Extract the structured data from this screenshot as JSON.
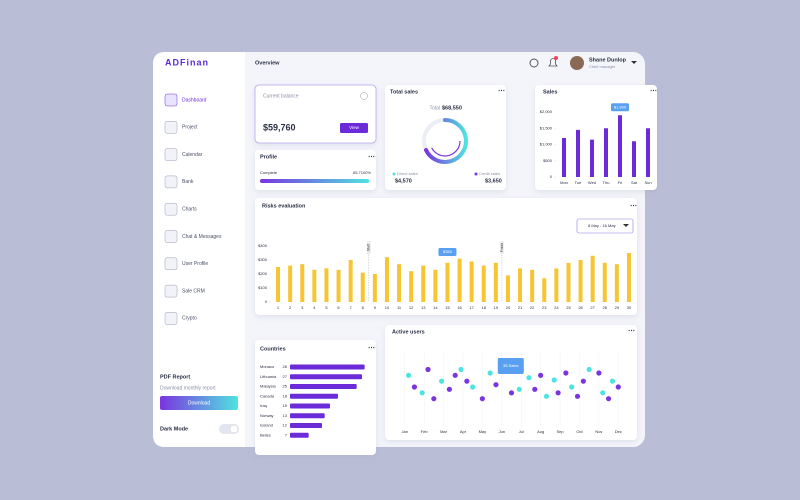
{
  "logo": "ADFinan",
  "header": {
    "title": "Overview",
    "user_name": "Shane Dunlop",
    "user_role": "Chief manager"
  },
  "nav": [
    "Dashboard",
    "Project",
    "Calendar",
    "Bank",
    "Charts",
    "Chat & Messages",
    "User Profile",
    "Sale CRM",
    "Crypto"
  ],
  "sidebar": {
    "pdf_title": "PDF Report",
    "pdf_text": "Download monthly report",
    "download": "Download",
    "dark_mode": "Dark Mode"
  },
  "balance": {
    "title": "Current balance",
    "amount": "$59,760",
    "button": "View"
  },
  "profile": {
    "title": "Profile",
    "label": "Complete",
    "value": "65.7100%"
  },
  "total_sales": {
    "title": "Total sales",
    "total_label": "Total",
    "total": "$68,550",
    "direct_label": "Direct sales",
    "direct": "$4,570",
    "credit_label": "Credit sales",
    "credit": "$3,650"
  },
  "chart_data": [
    {
      "type": "bar",
      "title": "Sales",
      "categories": [
        "Mon",
        "Tue",
        "Wed",
        "Thu",
        "Fri",
        "Sat",
        "Sun"
      ],
      "values": [
        1200,
        1450,
        1150,
        1500,
        1900,
        1100,
        1500
      ],
      "color": "#6b2bd9",
      "ylim": [
        0,
        2000
      ],
      "yticks": [
        0,
        {
          "value": 500,
          "label": "$500"
        },
        {
          "value": 1000,
          "label": "$1,000"
        },
        {
          "value": 1500,
          "label": "$1,500"
        },
        {
          "value": 2000,
          "label": "$2,000"
        }
      ],
      "tooltip": "$1,900"
    },
    {
      "type": "bar",
      "title": "Risks evaluation",
      "date_range": "8 May - 16 May",
      "categories": [
        "1",
        "2",
        "3",
        "4",
        "5",
        "6",
        "7",
        "8",
        "9",
        "10",
        "11",
        "12",
        "13",
        "14",
        "15",
        "16",
        "17",
        "18",
        "19",
        "20",
        "21",
        "22",
        "23",
        "24",
        "25",
        "26",
        "27",
        "28",
        "29",
        "30"
      ],
      "values": [
        250,
        260,
        270,
        230,
        240,
        230,
        300,
        210,
        200,
        320,
        270,
        220,
        260,
        230,
        280,
        310,
        290,
        260,
        280,
        190,
        240,
        230,
        170,
        240,
        280,
        300,
        330,
        280,
        270,
        350
      ],
      "color": "#f6c531",
      "ylim": [
        0,
        400
      ],
      "yticks": [
        0,
        {
          "value": 100,
          "label": "$100"
        },
        {
          "value": 200,
          "label": "$200"
        },
        {
          "value": 300,
          "label": "$300"
        },
        {
          "value": 400,
          "label": "$400"
        }
      ],
      "markers": [
        "Start",
        "Finish"
      ],
      "tooltip": "$350"
    },
    {
      "type": "hbar",
      "title": "Countries",
      "categories": [
        "Monaco",
        "Lithuania",
        "Malaysia",
        "Canada",
        "Iraq",
        "Norway",
        "Iceland",
        "Belize"
      ],
      "values": [
        28,
        27,
        25,
        18,
        15,
        13,
        12,
        7
      ],
      "color": "#6b2bd9",
      "xlim": [
        0,
        30
      ]
    },
    {
      "type": "scatter",
      "title": "Active users",
      "tooltip": "35 Sales",
      "xlim": [
        -0.5,
        11.5
      ],
      "ylim": [
        0,
        60
      ],
      "xticks": [
        {
          "value": 0,
          "label": "Jan"
        },
        {
          "value": 1,
          "label": "Feb"
        },
        {
          "value": 2,
          "label": "Mar"
        },
        {
          "value": 3,
          "label": "Apr"
        },
        {
          "value": 4,
          "label": "May"
        },
        {
          "value": 5,
          "label": "Jun"
        },
        {
          "value": 6,
          "label": "Jul"
        },
        {
          "value": 7,
          "label": "Aug"
        },
        {
          "value": 8,
          "label": "Sep"
        },
        {
          "value": 9,
          "label": "Oct"
        },
        {
          "value": 10,
          "label": "Nov"
        },
        {
          "value": 11,
          "label": "Dec"
        }
      ],
      "series": [
        {
          "color": "#4fe3e0",
          "x": [
            0.2,
            0.9,
            1.9,
            2.9,
            3.5,
            4.4,
            5.2,
            5.9,
            6.4,
            7.3,
            7.7,
            8.6,
            9.5,
            10.2,
            10.7
          ],
          "values": [
            40,
            25,
            35,
            45,
            30,
            42,
            50,
            28,
            38,
            22,
            36,
            30,
            45,
            25,
            35
          ]
        },
        {
          "color": "#7a35e0",
          "x": [
            0.5,
            1.2,
            1.5,
            2.3,
            2.6,
            3.2,
            4.0,
            4.7,
            5.5,
            6.0,
            6.7,
            7.0,
            7.9,
            8.3,
            8.9,
            9.2,
            10.0,
            10.5,
            11.0
          ],
          "values": [
            30,
            45,
            20,
            28,
            40,
            35,
            20,
            32,
            25,
            45,
            28,
            40,
            25,
            42,
            22,
            35,
            42,
            20,
            30
          ]
        }
      ]
    }
  ]
}
